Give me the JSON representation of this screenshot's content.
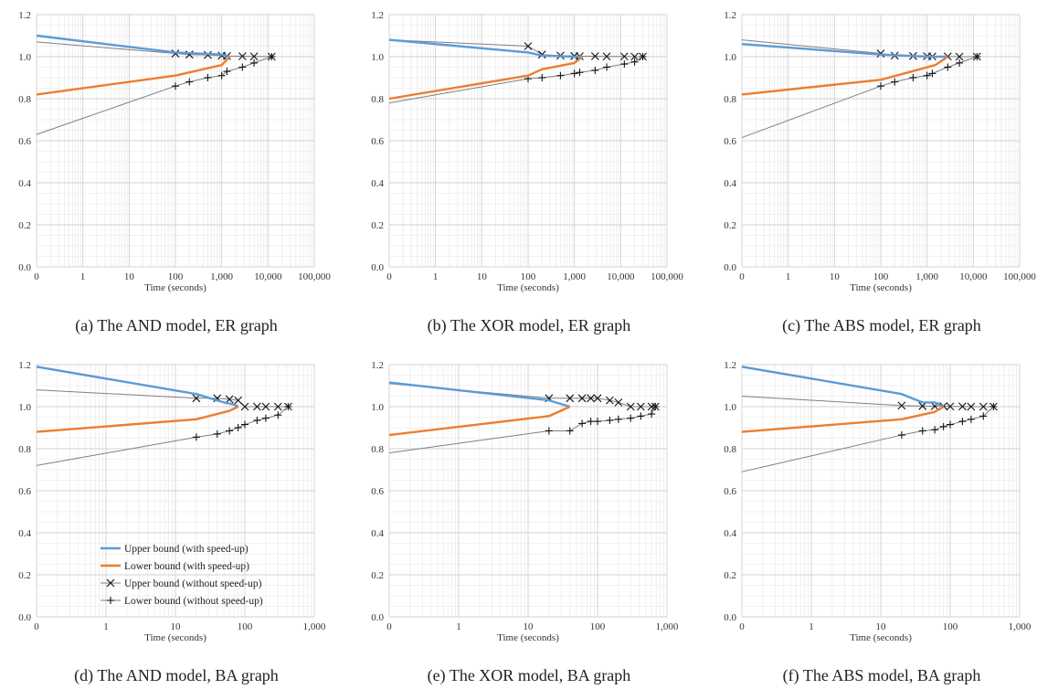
{
  "series_styles": [
    {
      "name": "Upper bound (with speed-up)",
      "color": "#5b9bd5",
      "marker": "none"
    },
    {
      "name": "Lower bound (with speed-up)",
      "color": "#ed7d31",
      "marker": "none"
    },
    {
      "name": "Upper bound (without speed-up)",
      "color": "#7f7f7f",
      "marker": "x"
    },
    {
      "name": "Lower bound (without speed-up)",
      "color": "#7f7f7f",
      "marker": "plus"
    }
  ],
  "chart_data": [
    {
      "type": "line",
      "caption": "(a) The AND model, ER graph",
      "xlabel": "Time (seconds)",
      "ylabel": "",
      "x_scale": "log",
      "x_ticks": [
        "0",
        "1",
        "10",
        "100",
        "1,000",
        "10,000",
        "100,000"
      ],
      "xlim": [
        0.1,
        100000
      ],
      "ylim": [
        0.0,
        1.2
      ],
      "y_ticks": [
        "0.0",
        "0.2",
        "0.4",
        "0.6",
        "0.8",
        "1.0",
        "1.2"
      ],
      "grid": true,
      "legend": "none",
      "series": [
        {
          "name": "Upper bound (with speed-up)",
          "x": [
            0.1,
            100,
            1000,
            1500
          ],
          "y": [
            1.1,
            1.02,
            1.01,
            1.0
          ]
        },
        {
          "name": "Lower bound (with speed-up)",
          "x": [
            0.1,
            100,
            1000,
            1500
          ],
          "y": [
            0.82,
            0.91,
            0.96,
            1.0
          ]
        },
        {
          "name": "Upper bound (without speed-up)",
          "x": [
            0.1,
            100,
            200,
            500,
            1000,
            1300,
            2800,
            5000,
            12000
          ],
          "y": [
            1.07,
            1.015,
            1.01,
            1.008,
            1.005,
            1.003,
            1.002,
            1.001,
            1.0
          ]
        },
        {
          "name": "Lower bound (without speed-up)",
          "x": [
            0.1,
            100,
            200,
            500,
            1000,
            1300,
            2800,
            5000,
            12000
          ],
          "y": [
            0.63,
            0.86,
            0.88,
            0.9,
            0.91,
            0.93,
            0.95,
            0.97,
            1.0
          ]
        }
      ]
    },
    {
      "type": "line",
      "caption": "(b) The XOR model, ER graph",
      "xlabel": "Time (seconds)",
      "ylabel": "",
      "x_scale": "log",
      "x_ticks": [
        "0",
        "1",
        "10",
        "100",
        "1,000",
        "10,000",
        "100,000"
      ],
      "xlim": [
        0.1,
        100000
      ],
      "ylim": [
        0.0,
        1.2
      ],
      "y_ticks": [
        "0.0",
        "0.2",
        "0.4",
        "0.6",
        "0.8",
        "1.0",
        "1.2"
      ],
      "grid": true,
      "legend": "none",
      "series": [
        {
          "name": "Upper bound (with speed-up)",
          "x": [
            0.1,
            100,
            200,
            1000,
            1500
          ],
          "y": [
            1.08,
            1.02,
            1.005,
            1.0,
            1.0
          ]
        },
        {
          "name": "Lower bound (with speed-up)",
          "x": [
            0.1,
            100,
            200,
            1000,
            1500
          ],
          "y": [
            0.8,
            0.91,
            0.94,
            0.97,
            1.0
          ]
        },
        {
          "name": "Upper bound (without speed-up)",
          "x": [
            0.1,
            100,
            200,
            500,
            1000,
            1300,
            2800,
            5000,
            12000,
            20000,
            30000
          ],
          "y": [
            1.08,
            1.05,
            1.01,
            1.005,
            1.003,
            1.002,
            1.002,
            1.001,
            1.001,
            1.0,
            1.0
          ]
        },
        {
          "name": "Lower bound (without speed-up)",
          "x": [
            0.1,
            100,
            200,
            500,
            1000,
            1300,
            2800,
            5000,
            12000,
            20000,
            30000
          ],
          "y": [
            0.78,
            0.895,
            0.9,
            0.91,
            0.92,
            0.925,
            0.935,
            0.95,
            0.965,
            0.975,
            1.0
          ]
        }
      ]
    },
    {
      "type": "line",
      "caption": "(c) The ABS model, ER graph",
      "xlabel": "Time (seconds)",
      "ylabel": "",
      "x_scale": "log",
      "x_ticks": [
        "0",
        "1",
        "10",
        "100",
        "1,000",
        "10,000",
        "100,000"
      ],
      "xlim": [
        0.1,
        100000
      ],
      "ylim": [
        0.0,
        1.2
      ],
      "y_ticks": [
        "0.0",
        "0.2",
        "0.4",
        "0.6",
        "0.8",
        "1.0",
        "1.2"
      ],
      "grid": true,
      "legend": "none",
      "series": [
        {
          "name": "Upper bound (with speed-up)",
          "x": [
            0.1,
            100,
            1000,
            2800
          ],
          "y": [
            1.06,
            1.01,
            1.0,
            1.0
          ]
        },
        {
          "name": "Lower bound (with speed-up)",
          "x": [
            0.1,
            100,
            1500,
            2800
          ],
          "y": [
            0.82,
            0.89,
            0.96,
            1.0
          ]
        },
        {
          "name": "Upper bound (without speed-up)",
          "x": [
            0.1,
            100,
            200,
            500,
            1000,
            1300,
            2800,
            5000,
            12000
          ],
          "y": [
            1.08,
            1.015,
            1.005,
            1.003,
            1.002,
            1.001,
            1.001,
            1.0,
            1.0
          ]
        },
        {
          "name": "Lower bound (without speed-up)",
          "x": [
            0.1,
            100,
            200,
            500,
            1000,
            1300,
            2800,
            5000,
            12000
          ],
          "y": [
            0.615,
            0.86,
            0.88,
            0.9,
            0.91,
            0.92,
            0.95,
            0.97,
            1.0
          ]
        }
      ]
    },
    {
      "type": "line",
      "caption": "(d) The AND model, BA graph",
      "xlabel": "Time (seconds)",
      "ylabel": "",
      "x_scale": "log",
      "x_ticks": [
        "0",
        "1",
        "10",
        "100",
        "1,000"
      ],
      "xlim": [
        0.1,
        1000
      ],
      "ylim": [
        0.0,
        1.2
      ],
      "y_ticks": [
        "0.0",
        "0.2",
        "0.4",
        "0.6",
        "0.8",
        "1.0",
        "1.2"
      ],
      "grid": true,
      "legend": "inside-lower-center",
      "series": [
        {
          "name": "Upper bound (with speed-up)",
          "x": [
            0.1,
            20,
            50,
            70,
            80
          ],
          "y": [
            1.19,
            1.06,
            1.02,
            1.01,
            1.0
          ]
        },
        {
          "name": "Lower bound (with speed-up)",
          "x": [
            0.1,
            20,
            60,
            80
          ],
          "y": [
            0.88,
            0.94,
            0.98,
            1.0
          ]
        },
        {
          "name": "Upper bound (without speed-up)",
          "x": [
            0.1,
            20,
            40,
            60,
            80,
            100,
            150,
            200,
            300,
            420
          ],
          "y": [
            1.08,
            1.04,
            1.04,
            1.035,
            1.03,
            1.0,
            1.0,
            1.0,
            1.0,
            1.0
          ]
        },
        {
          "name": "Lower bound (without speed-up)",
          "x": [
            0.1,
            20,
            40,
            60,
            80,
            100,
            150,
            200,
            300,
            420
          ],
          "y": [
            0.72,
            0.855,
            0.87,
            0.885,
            0.9,
            0.915,
            0.935,
            0.945,
            0.96,
            1.0
          ]
        }
      ]
    },
    {
      "type": "line",
      "caption": "(e) The XOR model, BA graph",
      "xlabel": "Time (seconds)",
      "ylabel": "",
      "x_scale": "log",
      "x_ticks": [
        "0",
        "1",
        "10",
        "100",
        "1,000"
      ],
      "xlim": [
        0.1,
        1000
      ],
      "ylim": [
        0.0,
        1.2
      ],
      "y_ticks": [
        "0.0",
        "0.2",
        "0.4",
        "0.6",
        "0.8",
        "1.0",
        "1.2"
      ],
      "grid": true,
      "legend": "none",
      "series": [
        {
          "name": "Upper bound (with speed-up)",
          "x": [
            0.1,
            20,
            40
          ],
          "y": [
            1.115,
            1.03,
            1.0
          ]
        },
        {
          "name": "Lower bound (with speed-up)",
          "x": [
            0.1,
            20,
            40
          ],
          "y": [
            0.865,
            0.955,
            1.0
          ]
        },
        {
          "name": "Upper bound (without speed-up)",
          "x": [
            0.1,
            20,
            40,
            60,
            80,
            100,
            150,
            200,
            300,
            420,
            600,
            680
          ],
          "y": [
            1.11,
            1.04,
            1.04,
            1.04,
            1.04,
            1.04,
            1.03,
            1.02,
            1.0,
            1.0,
            1.0,
            1.0
          ]
        },
        {
          "name": "Lower bound (without speed-up)",
          "x": [
            0.1,
            20,
            40,
            60,
            80,
            100,
            150,
            200,
            300,
            420,
            600,
            680
          ],
          "y": [
            0.78,
            0.885,
            0.885,
            0.92,
            0.93,
            0.93,
            0.935,
            0.94,
            0.945,
            0.955,
            0.965,
            1.0
          ]
        }
      ]
    },
    {
      "type": "line",
      "caption": "(f) The ABS model, BA graph",
      "xlabel": "Time (seconds)",
      "ylabel": "",
      "x_scale": "log",
      "x_ticks": [
        "0",
        "1",
        "10",
        "100",
        "1,000"
      ],
      "xlim": [
        0.1,
        1000
      ],
      "ylim": [
        0.0,
        1.2
      ],
      "y_ticks": [
        "0.0",
        "0.2",
        "0.4",
        "0.6",
        "0.8",
        "1.0",
        "1.2"
      ],
      "grid": true,
      "legend": "none",
      "series": [
        {
          "name": "Upper bound (with speed-up)",
          "x": [
            0.1,
            20,
            40,
            60,
            80
          ],
          "y": [
            1.19,
            1.06,
            1.02,
            1.02,
            1.0
          ]
        },
        {
          "name": "Lower bound (with speed-up)",
          "x": [
            0.1,
            20,
            60,
            80
          ],
          "y": [
            0.88,
            0.94,
            0.975,
            1.0
          ]
        },
        {
          "name": "Upper bound (without speed-up)",
          "x": [
            0.1,
            20,
            40,
            60,
            80,
            100,
            150,
            200,
            300,
            420
          ],
          "y": [
            1.05,
            1.005,
            1.003,
            1.002,
            1.002,
            1.001,
            1.001,
            1.0,
            1.0,
            1.0
          ]
        },
        {
          "name": "Lower bound (without speed-up)",
          "x": [
            0.1,
            20,
            40,
            60,
            80,
            100,
            150,
            200,
            300,
            420
          ],
          "y": [
            0.69,
            0.865,
            0.885,
            0.89,
            0.905,
            0.915,
            0.93,
            0.94,
            0.955,
            1.0
          ]
        }
      ]
    }
  ]
}
